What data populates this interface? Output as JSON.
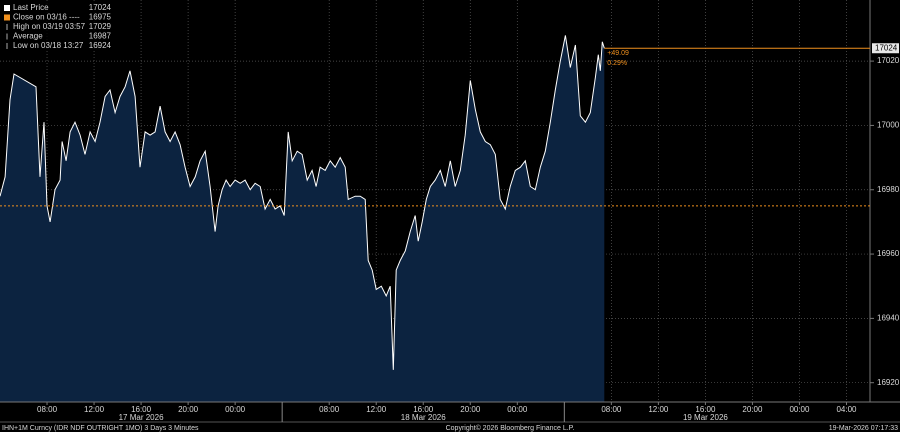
{
  "chart_data": {
    "type": "area",
    "legend": [
      {
        "label": "Last Price",
        "value": 17024
      },
      {
        "label": "Close on 03/16 ----",
        "value": 16975
      },
      {
        "label": "High on 03/19 03:57",
        "value": 17029
      },
      {
        "label": "Average",
        "value": 16987
      },
      {
        "label": "Low on 03/18 13:27",
        "value": 16924
      }
    ],
    "series": [
      {
        "name": "Last Price",
        "color": "#ffffff",
        "fill": "#0c2340",
        "x": [
          4.0,
          4.43,
          4.85,
          5.19,
          7.06,
          7.4,
          7.74,
          8.0,
          8.26,
          8.68,
          9.11,
          9.28,
          9.62,
          9.96,
          10.38,
          10.81,
          11.23,
          11.66,
          12.09,
          12.51,
          12.94,
          13.36,
          13.79,
          14.21,
          14.64,
          15.06,
          15.49,
          15.91,
          16.34,
          16.77,
          17.19,
          17.62,
          18.04,
          18.47,
          18.89,
          19.32,
          19.74,
          20.17,
          20.6,
          21.02,
          21.45,
          21.87,
          22.3,
          22.55,
          22.89,
          23.23,
          23.57,
          24.0,
          24.43,
          24.85,
          25.28,
          25.7,
          26.13,
          26.55,
          26.98,
          27.4,
          27.83,
          28.17,
          28.51,
          28.85,
          29.28,
          29.7,
          30.13,
          30.55,
          30.89,
          31.23,
          31.66,
          32.09,
          32.51,
          32.94,
          33.36,
          33.62,
          34.21,
          34.64,
          35.06,
          35.32,
          35.66,
          36.0,
          36.43,
          36.85,
          37.19,
          37.45,
          37.7,
          38.04,
          38.47,
          38.89,
          39.32,
          39.57,
          39.91,
          40.26,
          40.6,
          41.02,
          41.45,
          41.87,
          42.3,
          42.72,
          43.15,
          43.57,
          44.0,
          44.43,
          44.85,
          45.28,
          45.7,
          46.13,
          46.55,
          46.98,
          47.4,
          47.83,
          48.26,
          48.68,
          49.11,
          49.53,
          49.96,
          50.38,
          50.81,
          51.23,
          51.66,
          52.09,
          52.51,
          52.94,
          53.36,
          53.79,
          54.21,
          54.64,
          54.89,
          55.06,
          55.23,
          55.4
        ],
        "values": [
          16978,
          16984,
          17008,
          17016,
          17012,
          16984,
          17001,
          16975,
          16970,
          16980,
          16983,
          16995,
          16989,
          16998,
          17001,
          16997,
          16991,
          16998,
          16995,
          17001,
          17009,
          17011,
          17004,
          17009,
          17012,
          17017,
          17009,
          16987,
          16998,
          16997,
          16998,
          17006,
          16998,
          16995,
          16998,
          16994,
          16987,
          16981,
          16984,
          16989,
          16992,
          16981,
          16967,
          16975,
          16980,
          16983,
          16981,
          16983,
          16982,
          16983,
          16980,
          16982,
          16981,
          16974,
          16977,
          16974,
          16975,
          16972,
          16998,
          16989,
          16992,
          16991,
          16983,
          16986,
          16981,
          16987,
          16986,
          16989,
          16987,
          16990,
          16987,
          16977,
          16978,
          16978,
          16977,
          16958,
          16955,
          16949,
          16950,
          16947,
          16950,
          16924,
          16955,
          16958,
          16961,
          16967,
          16972,
          16964,
          16970,
          16977,
          16981,
          16983,
          16986,
          16981,
          16989,
          16981,
          16986,
          16997,
          17014,
          17005,
          16998,
          16995,
          16994,
          16991,
          16977,
          16974,
          16981,
          16986,
          16987,
          16989,
          16981,
          16980,
          16987,
          16992,
          17001,
          17011,
          17020,
          17028,
          17018,
          17025,
          17003,
          17001,
          17004,
          17015,
          17022,
          17017,
          17026,
          17024
        ]
      }
    ],
    "close_line": {
      "value": 16975,
      "color": "#f0901e"
    },
    "change": {
      "value": 49.09,
      "label": "+49.09"
    },
    "change_pct": {
      "value": 0.29,
      "label": "0.29%"
    },
    "xlim": [
      4,
      78
    ],
    "xticks": [
      {
        "value": 8,
        "label": "08:00"
      },
      {
        "value": 12,
        "label": "12:00"
      },
      {
        "value": 16,
        "label": "16:00"
      },
      {
        "value": 20,
        "label": "20:00"
      },
      {
        "value": 24,
        "label": "00:00"
      },
      {
        "value": 32,
        "label": "08:00"
      },
      {
        "value": 36,
        "label": "12:00"
      },
      {
        "value": 40,
        "label": "16:00"
      },
      {
        "value": 44,
        "label": "20:00"
      },
      {
        "value": 48,
        "label": "00:00"
      },
      {
        "value": 56,
        "label": "08:00"
      },
      {
        "value": 60,
        "label": "12:00"
      },
      {
        "value": 64,
        "label": "16:00"
      },
      {
        "value": 68,
        "label": "20:00"
      },
      {
        "value": 72,
        "label": "00:00"
      },
      {
        "value": 76,
        "label": "04:00"
      }
    ],
    "day_ticks": [
      {
        "value": 16,
        "label": "17 Mar 2026"
      },
      {
        "value": 40,
        "label": "18 Mar 2026"
      },
      {
        "value": 64,
        "label": "19 Mar 2026"
      }
    ],
    "day_separators": [
      28,
      52
    ],
    "ylim": [
      16914,
      17039
    ],
    "yticks": [
      16920,
      16940,
      16960,
      16980,
      17000,
      17020
    ],
    "grid": true,
    "footer": {
      "left": "IHN+1M Curncy (IDR NDF OUTRIGHT   1MO) 3 Days 3 Minutes",
      "center": "Copyright© 2026 Bloomberg Finance L.P.",
      "right": "19-Mar-2026 07:17:33"
    }
  }
}
